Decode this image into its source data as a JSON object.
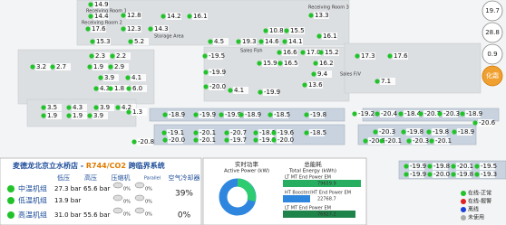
{
  "store_map": {
    "zones": [
      "Receiving Room 1",
      "Receiving Room 2",
      "Receiving Room 3",
      "Storage Area",
      "Sales F/V",
      "Sales Fish"
    ],
    "sensors": [
      "14.9",
      "14.4",
      "12.8",
      "14.2",
      "16.1",
      "13.3",
      "17.6",
      "12.3",
      "14.3",
      "10.8",
      "15.5",
      "16.1",
      "15.3",
      "5.2",
      "4.5",
      "19.3",
      "14.6",
      "14.1",
      "2.3",
      "2.2",
      "3.2",
      "2.7",
      "1.9",
      "2.9",
      "3.9",
      "4.1",
      "4.3",
      "1.8",
      "6.0",
      "-19.5",
      "16.6",
      "17.0",
      "15.2",
      "15.9",
      "16.5",
      "16.2",
      "9.4",
      "13.6",
      "17.3",
      "17.6",
      "7.1",
      "-19.9",
      "-20.0",
      "4.1",
      "-19.9",
      "3.5",
      "4.3",
      "3.9",
      "4.2",
      "1.9",
      "1.9",
      "3.9",
      "1.3",
      "-18.9",
      "-19.9",
      "-19.9",
      "-18.9",
      "-18.5",
      "-19.8",
      "-19.2",
      "-20.4",
      "-18.4",
      "-20.7",
      "-20.3",
      "-18.9",
      "-20.6",
      "-19.1",
      "-20.1",
      "-20.7",
      "-18.3",
      "-19.6",
      "-18.5",
      "-20.3",
      "-19.8",
      "-19.8",
      "-18.9",
      "-20.8",
      "-20.0",
      "-20.1",
      "-19.7",
      "-19.8",
      "-20.0",
      "-20.5",
      "-20.1",
      "-20.3",
      "-20.1",
      "-19.9",
      "-19.8",
      "-20.1",
      "-19.5",
      "-19.9",
      "-20.0",
      "-19.8",
      "-19.3"
    ]
  },
  "side_buttons": [
    "19.7",
    "28.8",
    "0.9",
    "化霜"
  ],
  "system_panel": {
    "title": "麦德龙北京立水桥店 - ",
    "refrigerant": "R744/CO2",
    "title_suffix": " 跨临界系统",
    "headers": [
      "低压",
      "高压",
      "压缩机",
      "Parallel",
      "空气冷却器"
    ],
    "rows": [
      [
        "中温机组",
        "27.3 bar",
        "65.6 bar"
      ],
      [
        "低温机组",
        "13.9 bar",
        ""
      ],
      [
        "高温机组",
        "31.0 bar",
        "55.6 bar"
      ]
    ],
    "compressor_labels": [
      "0%",
      "0%",
      "0%",
      "0%",
      "0%",
      "0%"
    ],
    "air_cooler": [
      "39%",
      "0%"
    ]
  },
  "energy_panel": {
    "power_title": "实时功率",
    "power_subtitle": "Active Power (kW)",
    "energy_title": "总能耗",
    "energy_subtitle": "Total Energy (kWh)",
    "bars": [
      {
        "name": "LT MT End Power EM",
        "value": "79659.9"
      },
      {
        "name": "HT Booster/HT End Power EM",
        "value": "22768.7"
      },
      {
        "name": "LT MT End Power EM",
        "value": "76927.2"
      }
    ]
  },
  "legend": [
    "在线-正常",
    "在线-报警",
    "离线",
    "未使用"
  ]
}
